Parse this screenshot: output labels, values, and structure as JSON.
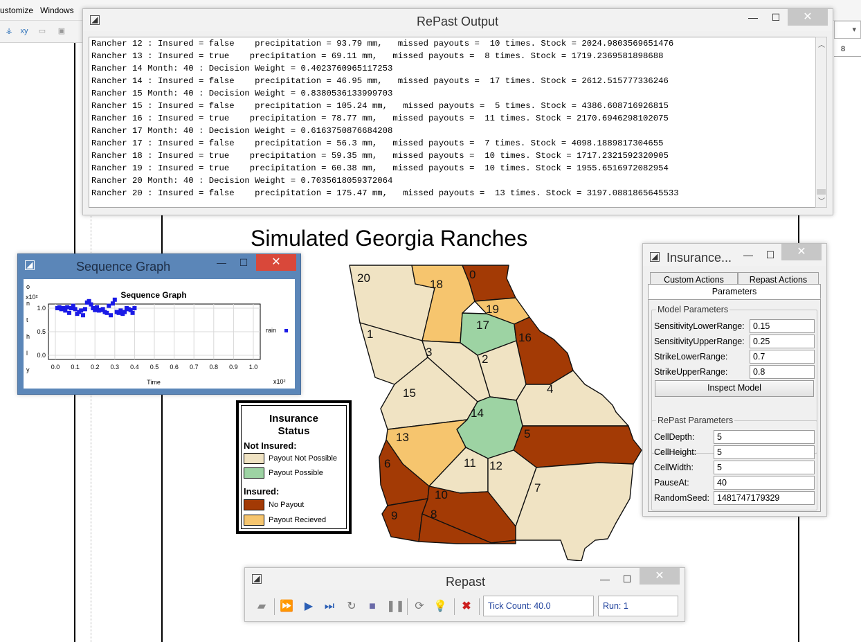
{
  "background": {
    "menu": [
      "ustomize",
      "Windows"
    ],
    "ruler_number": "8"
  },
  "output": {
    "title": "RePast Output",
    "lines": [
      "Rancher 12 : Insured = false    precipitation = 93.79 mm,   missed payouts =  10 times. Stock = 2024.9803569651476",
      "Rancher 13 : Insured = true    precipitation = 69.11 mm,   missed payouts =  8 times. Stock = 1719.2369581898688",
      "Rancher 14 Month: 40 : Decision Weight = 0.4023760965117253",
      "Rancher 14 : Insured = false    precipitation = 46.95 mm,   missed payouts =  17 times. Stock = 2612.515777336246",
      "Rancher 15 Month: 40 : Decision Weight = 0.8380536133999703",
      "Rancher 15 : Insured = false    precipitation = 105.24 mm,   missed payouts =  5 times. Stock = 4386.608716926815",
      "Rancher 16 : Insured = true    precipitation = 78.77 mm,   missed payouts =  11 times. Stock = 2170.6946298102075",
      "Rancher 17 Month: 40 : Decision Weight = 0.6163750876684208",
      "Rancher 17 : Insured = false    precipitation = 56.3 mm,   missed payouts =  7 times. Stock = 4098.1889817304655",
      "Rancher 18 : Insured = true    precipitation = 59.35 mm,   missed payouts =  10 times. Stock = 1717.2321592320905",
      "Rancher 19 : Insured = true    precipitation = 60.38 mm,   missed payouts =  10 times. Stock = 1955.6516972082954",
      "Rancher 20 Month: 40 : Decision Weight = 0.7035618059372064",
      "Rancher 20 : Insured = false    precipitation = 175.47 mm,   missed payouts =  13 times. Stock = 3197.0881865645533"
    ]
  },
  "map": {
    "title": "Simulated Georgia Ranches",
    "colors": {
      "not_insured_no_payout_possible": "#f0e3c3",
      "not_insured_payout_possible": "#9dd3a3",
      "insured_no_payout": "#a33a05",
      "insured_payout_received": "#f6c56e"
    },
    "regions": [
      {
        "id": "20",
        "status": "not_insured_no_payout_possible"
      },
      {
        "id": "18",
        "status": "insured_payout_received"
      },
      {
        "id": "0",
        "status": "insured_no_payout"
      },
      {
        "id": "19",
        "status": "insured_payout_received"
      },
      {
        "id": "17",
        "status": "not_insured_payout_possible"
      },
      {
        "id": "16",
        "status": "insured_no_payout"
      },
      {
        "id": "1",
        "status": "not_insured_no_payout_possible"
      },
      {
        "id": "3",
        "status": "not_insured_no_payout_possible"
      },
      {
        "id": "2",
        "status": "not_insured_no_payout_possible"
      },
      {
        "id": "4",
        "status": "not_insured_no_payout_possible"
      },
      {
        "id": "15",
        "status": "not_insured_no_payout_possible"
      },
      {
        "id": "14",
        "status": "not_insured_payout_possible"
      },
      {
        "id": "13",
        "status": "insured_payout_received"
      },
      {
        "id": "5",
        "status": "insured_no_payout"
      },
      {
        "id": "6",
        "status": "insured_no_payout"
      },
      {
        "id": "11",
        "status": "not_insured_no_payout_possible"
      },
      {
        "id": "12",
        "status": "not_insured_no_payout_possible"
      },
      {
        "id": "7",
        "status": "not_insured_no_payout_possible"
      },
      {
        "id": "10",
        "status": "insured_no_payout"
      },
      {
        "id": "9",
        "status": "insured_no_payout"
      },
      {
        "id": "8",
        "status": "insured_no_payout"
      }
    ]
  },
  "legend": {
    "title_line1": "Insurance",
    "title_line2": "Status",
    "not_insured_heading": "Not Insured:",
    "payout_not_possible": "Payout Not Possible",
    "payout_possible": "Payout Possible",
    "insured_heading": "Insured:",
    "no_payout": "No Payout",
    "payout_received": "Payout Recieved"
  },
  "sequence_graph": {
    "window_title": "Sequence Graph",
    "chart_title": "Sequence Graph",
    "y_axis_vertical_label": "o n t h l y   P r e c",
    "y_exponent": "x10²",
    "x_exponent": "x10²",
    "x_label": "Time",
    "legend_label": "rain",
    "chart_data": {
      "type": "scatter",
      "title": "Sequence Graph",
      "xlabel": "Time",
      "xlim": [
        0.0,
        1.0
      ],
      "ylim": [
        0.0,
        1.0
      ],
      "xticks": [
        "0.0",
        "0.1",
        "0.2",
        "0.3",
        "0.4",
        "0.5",
        "0.6",
        "0.7",
        "0.8",
        "0.9",
        "1.0"
      ],
      "yticks": [
        "0.0",
        "0.5",
        "1.0"
      ],
      "series": [
        {
          "name": "rain",
          "color": "#1a1ae6",
          "x": [
            0.01,
            0.02,
            0.03,
            0.04,
            0.05,
            0.06,
            0.07,
            0.08,
            0.09,
            0.1,
            0.11,
            0.12,
            0.13,
            0.14,
            0.15,
            0.16,
            0.17,
            0.18,
            0.19,
            0.2,
            0.21,
            0.22,
            0.23,
            0.24,
            0.25,
            0.26,
            0.27,
            0.28,
            0.29,
            0.3,
            0.31,
            0.32,
            0.33,
            0.34,
            0.35,
            0.36,
            0.37,
            0.38,
            0.39,
            0.4
          ],
          "y": [
            1.0,
            1.02,
            0.98,
            1.0,
            0.95,
            1.02,
            0.9,
            1.0,
            1.05,
            0.98,
            0.88,
            0.92,
            0.95,
            0.85,
            0.98,
            1.12,
            1.15,
            1.08,
            1.0,
            0.96,
            1.02,
            0.95,
            0.96,
            0.98,
            0.92,
            0.9,
            1.05,
            0.85,
            1.1,
            1.18,
            0.92,
            0.9,
            0.95,
            0.88,
            0.92,
            1.0,
            0.98,
            0.96,
            0.9,
            1.0
          ]
        }
      ]
    }
  },
  "insurance": {
    "title": "Insurance...",
    "tab_custom": "Custom Actions",
    "tab_repast": "Repast Actions",
    "tab_params": "Parameters",
    "model_group": "Model Parameters",
    "model_params": [
      {
        "label": "SensitivityLowerRange:",
        "value": "0.15"
      },
      {
        "label": "SensitivityUpperRange:",
        "value": "0.25"
      },
      {
        "label": "StrikeLowerRange:",
        "value": "0.7"
      },
      {
        "label": "StrikeUpperRange:",
        "value": "0.8"
      }
    ],
    "inspect_button": "Inspect Model",
    "repast_group": "RePast Parameters",
    "repast_params": [
      {
        "label": "CellDepth:",
        "value": "5"
      },
      {
        "label": "CellHeight:",
        "value": "5"
      },
      {
        "label": "CellWidth:",
        "value": "5"
      },
      {
        "label": "PauseAt:",
        "value": "40"
      },
      {
        "label": "RandomSeed:",
        "value": "1481747179329"
      }
    ]
  },
  "repast": {
    "title": "Repast",
    "tick_count": "Tick Count: 40.0",
    "run": "Run: 1"
  }
}
